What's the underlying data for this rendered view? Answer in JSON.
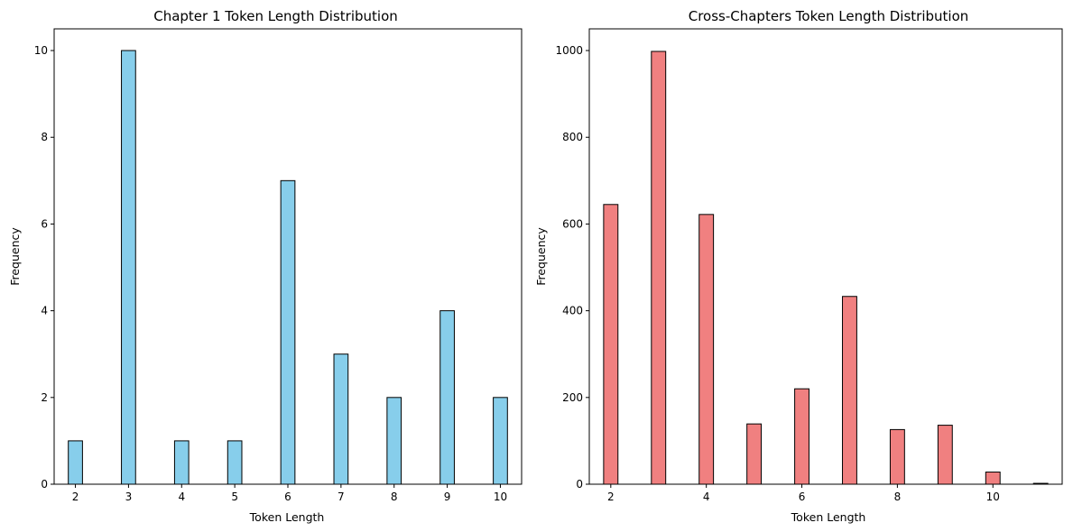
{
  "chart_data": [
    {
      "type": "bar",
      "title": "Chapter 1 Token Length Distribution",
      "xlabel": "Token Length",
      "ylabel": "Frequency",
      "xlim": [
        1.6,
        10.4
      ],
      "ylim": [
        0,
        10.5
      ],
      "xticks": [
        2,
        3,
        4,
        5,
        6,
        7,
        8,
        9,
        10
      ],
      "yticks": [
        0,
        2,
        4,
        6,
        8,
        10
      ],
      "bar_width": 0.2667,
      "color": "#87ceeb",
      "edgecolor": "#000000",
      "x": [
        2,
        3,
        4,
        5,
        6,
        7,
        8,
        9,
        10
      ],
      "values": [
        1,
        10,
        1,
        1,
        7,
        3,
        2,
        4,
        2
      ]
    },
    {
      "type": "bar",
      "title": "Cross-Chapters Token Length Distribution",
      "xlabel": "Token Length",
      "ylabel": "Frequency",
      "xlim": [
        1.55,
        11.45
      ],
      "ylim": [
        0,
        1050
      ],
      "xticks": [
        2,
        4,
        6,
        8,
        10
      ],
      "yticks": [
        0,
        200,
        400,
        600,
        800,
        1000
      ],
      "bar_width": 0.3,
      "color": "#f08080",
      "edgecolor": "#000000",
      "x": [
        2,
        3,
        4,
        5,
        6,
        7,
        8,
        9,
        10,
        11
      ],
      "values": [
        645,
        998,
        622,
        139,
        220,
        433,
        126,
        136,
        28,
        2
      ]
    }
  ]
}
